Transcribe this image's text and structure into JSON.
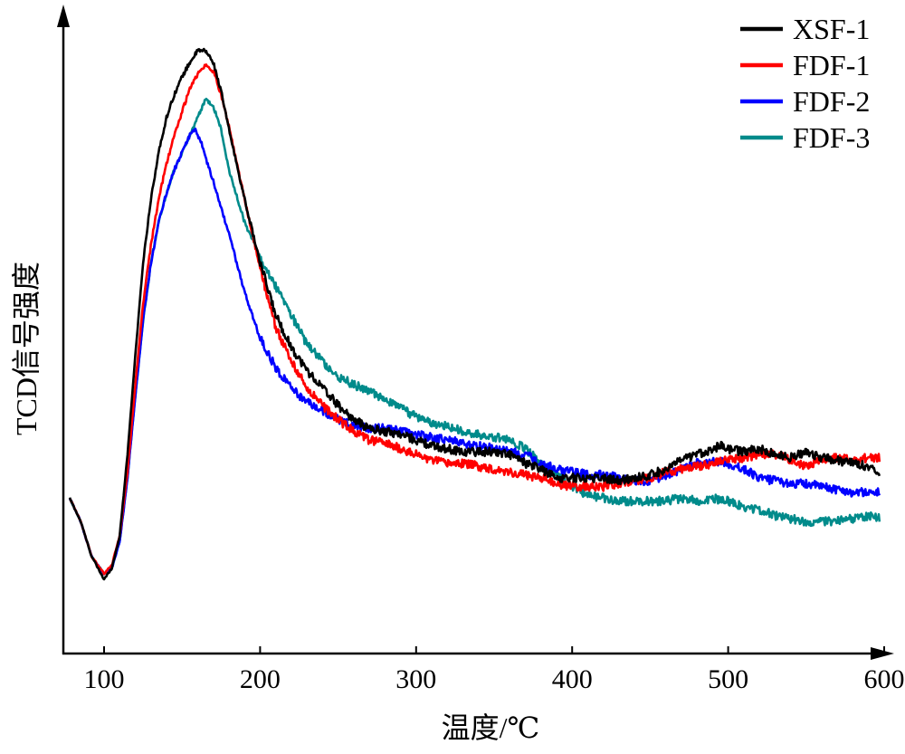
{
  "chart_data": {
    "type": "line",
    "title": "",
    "xlabel": "温度/℃",
    "ylabel": "TCD信号强度",
    "xlim": [
      75,
      605
    ],
    "ylim": [
      0,
      100
    ],
    "x_ticks": [
      100,
      200,
      300,
      400,
      500,
      600
    ],
    "x_tick_labels": [
      "100",
      "200",
      "300",
      "400",
      "500",
      "600"
    ],
    "y_ticks_shown": false,
    "grid": false,
    "legend_position": "top-right",
    "series": [
      {
        "name": "XSF-1",
        "color": "#000000",
        "points": [
          [
            78,
            20.5
          ],
          [
            85,
            16.5
          ],
          [
            92,
            10.5
          ],
          [
            100,
            6.5
          ],
          [
            105,
            8.5
          ],
          [
            110,
            14
          ],
          [
            115,
            28
          ],
          [
            120,
            45
          ],
          [
            125,
            61
          ],
          [
            130,
            72
          ],
          [
            135,
            80
          ],
          [
            140,
            86
          ],
          [
            145,
            90
          ],
          [
            150,
            93
          ],
          [
            155,
            95.5
          ],
          [
            160,
            97.5
          ],
          [
            165,
            97.5
          ],
          [
            170,
            95.5
          ],
          [
            175,
            90.5
          ],
          [
            180,
            84
          ],
          [
            190,
            72
          ],
          [
            200,
            61
          ],
          [
            210,
            52
          ],
          [
            220,
            46.5
          ],
          [
            230,
            42.5
          ],
          [
            240,
            39.5
          ],
          [
            250,
            36.5
          ],
          [
            260,
            34
          ],
          [
            270,
            32.5
          ],
          [
            280,
            32
          ],
          [
            290,
            31.5
          ],
          [
            300,
            30.5
          ],
          [
            310,
            29.5
          ],
          [
            320,
            29
          ],
          [
            330,
            28.5
          ],
          [
            340,
            28.5
          ],
          [
            350,
            28.5
          ],
          [
            360,
            28
          ],
          [
            370,
            26.5
          ],
          [
            380,
            25.5
          ],
          [
            390,
            24
          ],
          [
            400,
            24
          ],
          [
            410,
            24
          ],
          [
            420,
            24
          ],
          [
            430,
            23.5
          ],
          [
            440,
            24
          ],
          [
            450,
            24.5
          ],
          [
            460,
            25.5
          ],
          [
            470,
            27
          ],
          [
            480,
            28
          ],
          [
            490,
            29
          ],
          [
            495,
            29.5
          ],
          [
            500,
            29
          ],
          [
            510,
            28.5
          ],
          [
            520,
            29
          ],
          [
            530,
            28
          ],
          [
            540,
            27.5
          ],
          [
            550,
            28.5
          ],
          [
            560,
            27.5
          ],
          [
            570,
            27
          ],
          [
            580,
            26.5
          ],
          [
            590,
            26
          ],
          [
            597,
            25
          ]
        ]
      },
      {
        "name": "FDF-1",
        "color": "#ff0000",
        "points": [
          [
            78,
            20.5
          ],
          [
            85,
            16.5
          ],
          [
            92,
            10.5
          ],
          [
            100,
            7.5
          ],
          [
            105,
            9
          ],
          [
            110,
            14
          ],
          [
            115,
            25
          ],
          [
            120,
            40
          ],
          [
            125,
            54
          ],
          [
            130,
            64
          ],
          [
            135,
            72
          ],
          [
            140,
            78
          ],
          [
            145,
            83
          ],
          [
            150,
            87
          ],
          [
            155,
            91
          ],
          [
            160,
            93.5
          ],
          [
            165,
            95
          ],
          [
            170,
            94
          ],
          [
            175,
            90
          ],
          [
            180,
            84.5
          ],
          [
            190,
            72
          ],
          [
            200,
            60
          ],
          [
            210,
            50
          ],
          [
            220,
            44
          ],
          [
            230,
            39.5
          ],
          [
            240,
            36.5
          ],
          [
            250,
            34
          ],
          [
            260,
            32
          ],
          [
            270,
            30.5
          ],
          [
            280,
            30
          ],
          [
            290,
            29
          ],
          [
            300,
            28
          ],
          [
            310,
            27
          ],
          [
            320,
            26.5
          ],
          [
            330,
            26.5
          ],
          [
            340,
            26
          ],
          [
            350,
            25.5
          ],
          [
            360,
            25
          ],
          [
            370,
            24.5
          ],
          [
            380,
            24
          ],
          [
            390,
            23
          ],
          [
            400,
            22.5
          ],
          [
            410,
            22.5
          ],
          [
            420,
            22.5
          ],
          [
            430,
            23
          ],
          [
            440,
            23.5
          ],
          [
            450,
            24
          ],
          [
            460,
            25
          ],
          [
            470,
            25.5
          ],
          [
            480,
            26
          ],
          [
            490,
            26.5
          ],
          [
            500,
            27
          ],
          [
            510,
            27.5
          ],
          [
            520,
            28
          ],
          [
            530,
            28
          ],
          [
            540,
            27
          ],
          [
            550,
            26
          ],
          [
            560,
            27
          ],
          [
            570,
            27.5
          ],
          [
            580,
            27
          ],
          [
            590,
            27.5
          ],
          [
            597,
            27.5
          ]
        ]
      },
      {
        "name": "FDF-2",
        "color": "#0000ff",
        "points": [
          [
            78,
            20.5
          ],
          [
            85,
            16.5
          ],
          [
            92,
            10.5
          ],
          [
            100,
            7.5
          ],
          [
            105,
            8.5
          ],
          [
            110,
            13
          ],
          [
            115,
            24
          ],
          [
            120,
            38
          ],
          [
            125,
            51
          ],
          [
            130,
            61
          ],
          [
            135,
            68
          ],
          [
            140,
            73
          ],
          [
            145,
            77
          ],
          [
            150,
            80
          ],
          [
            155,
            83
          ],
          [
            158,
            84
          ],
          [
            162,
            82
          ],
          [
            165,
            79
          ],
          [
            170,
            75
          ],
          [
            180,
            66
          ],
          [
            190,
            56
          ],
          [
            200,
            48
          ],
          [
            210,
            43
          ],
          [
            220,
            39.5
          ],
          [
            230,
            37
          ],
          [
            240,
            35.5
          ],
          [
            250,
            34
          ],
          [
            260,
            33
          ],
          [
            270,
            32.5
          ],
          [
            280,
            32.5
          ],
          [
            290,
            32
          ],
          [
            300,
            31.5
          ],
          [
            310,
            31
          ],
          [
            320,
            30.5
          ],
          [
            330,
            30
          ],
          [
            340,
            29.5
          ],
          [
            350,
            29
          ],
          [
            360,
            28.5
          ],
          [
            370,
            28
          ],
          [
            380,
            26.5
          ],
          [
            390,
            25.5
          ],
          [
            400,
            25
          ],
          [
            410,
            24.5
          ],
          [
            420,
            24.5
          ],
          [
            430,
            24
          ],
          [
            440,
            23.5
          ],
          [
            450,
            23.5
          ],
          [
            460,
            24.5
          ],
          [
            470,
            25.5
          ],
          [
            480,
            26.5
          ],
          [
            490,
            27
          ],
          [
            500,
            26.5
          ],
          [
            510,
            25.5
          ],
          [
            520,
            24
          ],
          [
            530,
            23.5
          ],
          [
            540,
            23
          ],
          [
            550,
            23
          ],
          [
            560,
            22.5
          ],
          [
            570,
            22
          ],
          [
            580,
            21.5
          ],
          [
            590,
            21.5
          ],
          [
            597,
            21.5
          ]
        ]
      },
      {
        "name": "FDF-3",
        "color": "#008b8b",
        "points": [
          [
            78,
            20.5
          ],
          [
            85,
            16.5
          ],
          [
            92,
            10.5
          ],
          [
            100,
            7.5
          ],
          [
            105,
            8.5
          ],
          [
            110,
            13
          ],
          [
            115,
            24
          ],
          [
            120,
            38
          ],
          [
            125,
            51
          ],
          [
            130,
            61
          ],
          [
            135,
            68
          ],
          [
            140,
            73
          ],
          [
            145,
            77
          ],
          [
            150,
            80
          ],
          [
            155,
            83
          ],
          [
            160,
            86
          ],
          [
            165,
            89
          ],
          [
            170,
            88
          ],
          [
            175,
            84
          ],
          [
            180,
            77
          ],
          [
            190,
            68
          ],
          [
            200,
            62
          ],
          [
            210,
            57
          ],
          [
            220,
            52
          ],
          [
            230,
            47
          ],
          [
            240,
            44
          ],
          [
            250,
            41.5
          ],
          [
            260,
            40
          ],
          [
            270,
            39
          ],
          [
            280,
            37.5
          ],
          [
            290,
            36
          ],
          [
            300,
            34.5
          ],
          [
            310,
            33.5
          ],
          [
            320,
            33
          ],
          [
            330,
            32
          ],
          [
            340,
            31.5
          ],
          [
            350,
            31
          ],
          [
            360,
            30.5
          ],
          [
            370,
            29
          ],
          [
            380,
            26.5
          ],
          [
            390,
            24.5
          ],
          [
            400,
            22.5
          ],
          [
            410,
            21
          ],
          [
            420,
            20.5
          ],
          [
            430,
            20
          ],
          [
            440,
            20
          ],
          [
            450,
            20
          ],
          [
            460,
            20
          ],
          [
            470,
            20.5
          ],
          [
            480,
            20
          ],
          [
            490,
            20.5
          ],
          [
            500,
            20
          ],
          [
            510,
            19
          ],
          [
            520,
            18.5
          ],
          [
            530,
            17.5
          ],
          [
            540,
            17
          ],
          [
            550,
            16.5
          ],
          [
            560,
            16.5
          ],
          [
            570,
            16.5
          ],
          [
            580,
            17
          ],
          [
            590,
            17.5
          ],
          [
            597,
            17
          ]
        ]
      }
    ]
  }
}
